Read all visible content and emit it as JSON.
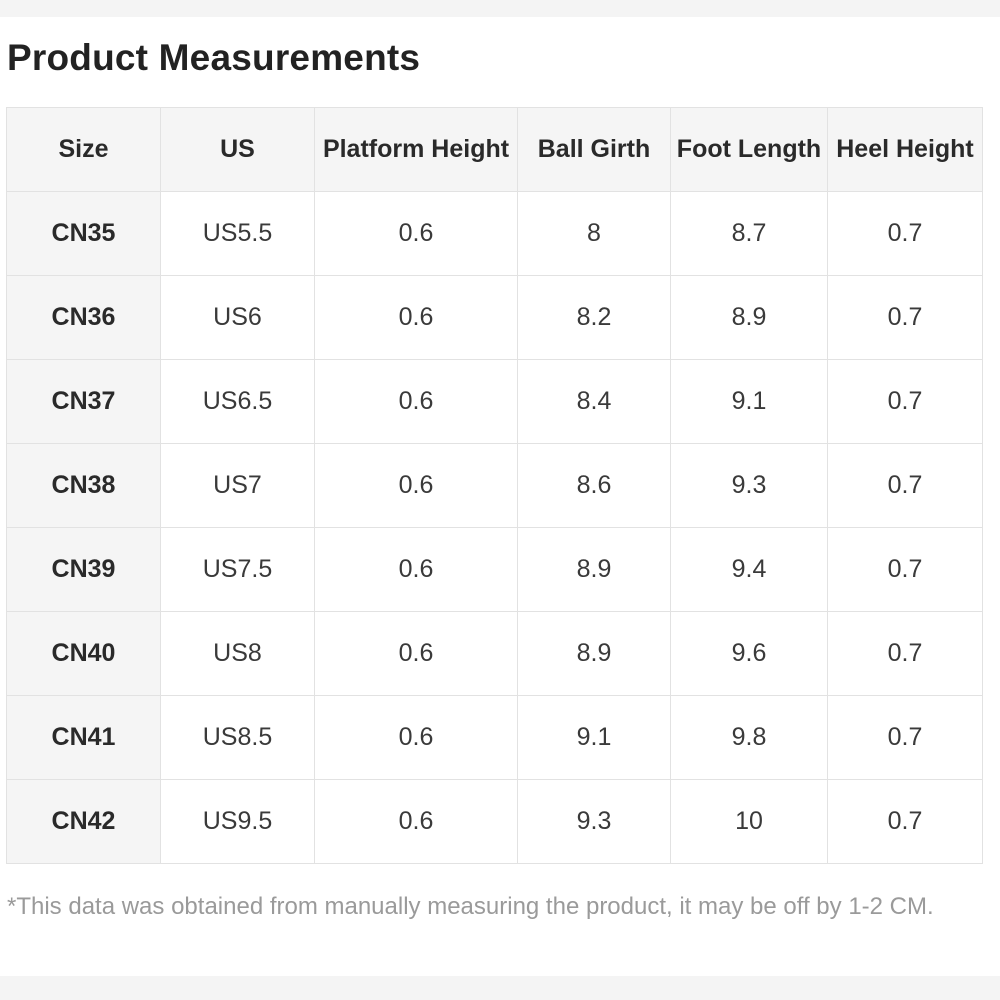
{
  "title": "Product Measurements",
  "table": {
    "headers": [
      "Size",
      "US",
      "Platform Height",
      "Ball Girth",
      "Foot Length",
      "Heel Height"
    ],
    "rows": [
      [
        "CN35",
        "US5.5",
        "0.6",
        "8",
        "8.7",
        "0.7"
      ],
      [
        "CN36",
        "US6",
        "0.6",
        "8.2",
        "8.9",
        "0.7"
      ],
      [
        "CN37",
        "US6.5",
        "0.6",
        "8.4",
        "9.1",
        "0.7"
      ],
      [
        "CN38",
        "US7",
        "0.6",
        "8.6",
        "9.3",
        "0.7"
      ],
      [
        "CN39",
        "US7.5",
        "0.6",
        "8.9",
        "9.4",
        "0.7"
      ],
      [
        "CN40",
        "US8",
        "0.6",
        "8.9",
        "9.6",
        "0.7"
      ],
      [
        "CN41",
        "US8.5",
        "0.6",
        "9.1",
        "9.8",
        "0.7"
      ],
      [
        "CN42",
        "US9.5",
        "0.6",
        "9.3",
        "10",
        "0.7"
      ]
    ]
  },
  "note": "*This data was obtained from manually measuring the product, it may be off by 1-2 CM."
}
